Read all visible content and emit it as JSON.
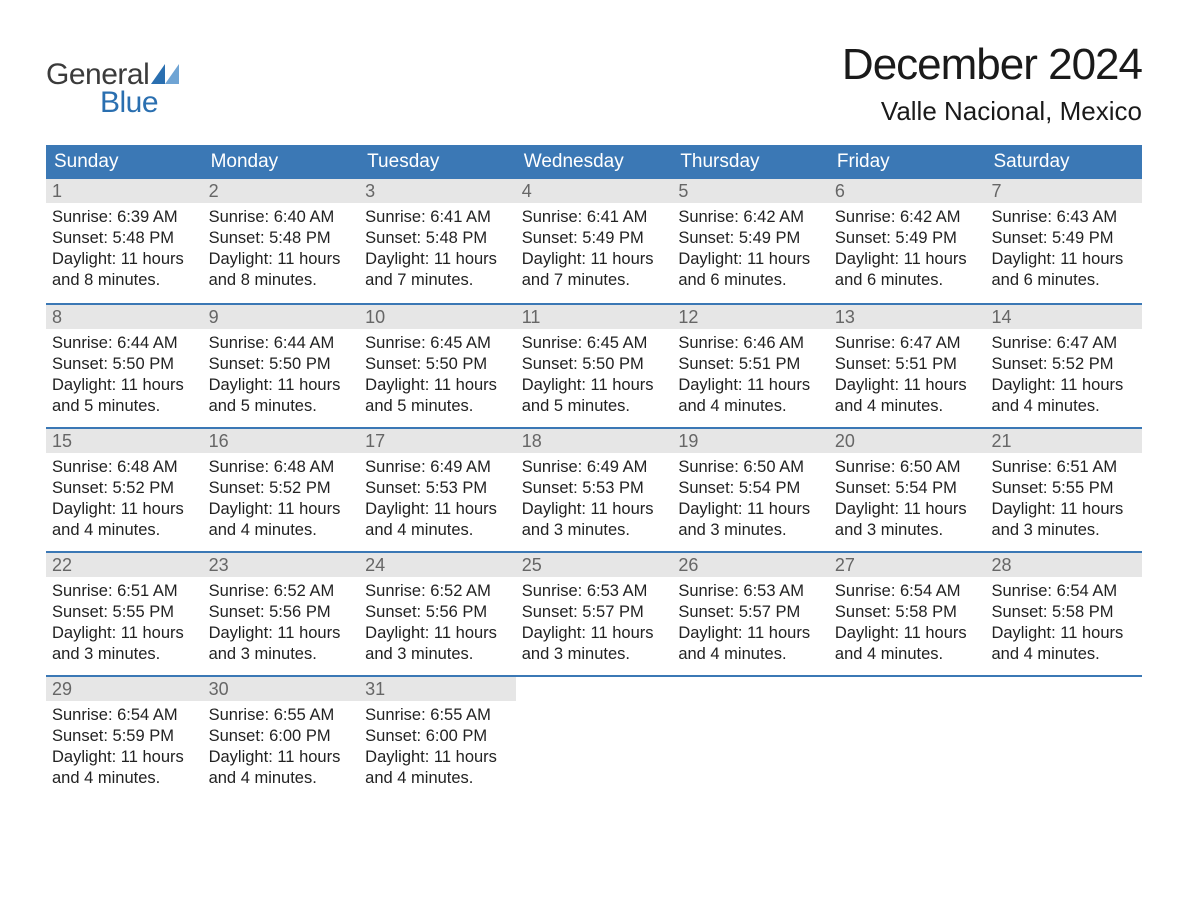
{
  "brand": {
    "general": "General",
    "blue": "Blue"
  },
  "colors": {
    "header_bg": "#3b78b5",
    "header_text": "#ffffff",
    "daynum_bg": "#e6e6e6",
    "daynum_text": "#666666",
    "body_text": "#222222",
    "week_border": "#3b78b5",
    "logo_accent": "#2a6fb0",
    "page_bg": "#ffffff"
  },
  "title": "December 2024",
  "location": "Valle Nacional, Mexico",
  "day_headers": [
    "Sunday",
    "Monday",
    "Tuesday",
    "Wednesday",
    "Thursday",
    "Friday",
    "Saturday"
  ],
  "weeks": [
    [
      {
        "day": "1",
        "sunrise": "Sunrise: 6:39 AM",
        "sunset": "Sunset: 5:48 PM",
        "dl1": "Daylight: 11 hours",
        "dl2": "and 8 minutes."
      },
      {
        "day": "2",
        "sunrise": "Sunrise: 6:40 AM",
        "sunset": "Sunset: 5:48 PM",
        "dl1": "Daylight: 11 hours",
        "dl2": "and 8 minutes."
      },
      {
        "day": "3",
        "sunrise": "Sunrise: 6:41 AM",
        "sunset": "Sunset: 5:48 PM",
        "dl1": "Daylight: 11 hours",
        "dl2": "and 7 minutes."
      },
      {
        "day": "4",
        "sunrise": "Sunrise: 6:41 AM",
        "sunset": "Sunset: 5:49 PM",
        "dl1": "Daylight: 11 hours",
        "dl2": "and 7 minutes."
      },
      {
        "day": "5",
        "sunrise": "Sunrise: 6:42 AM",
        "sunset": "Sunset: 5:49 PM",
        "dl1": "Daylight: 11 hours",
        "dl2": "and 6 minutes."
      },
      {
        "day": "6",
        "sunrise": "Sunrise: 6:42 AM",
        "sunset": "Sunset: 5:49 PM",
        "dl1": "Daylight: 11 hours",
        "dl2": "and 6 minutes."
      },
      {
        "day": "7",
        "sunrise": "Sunrise: 6:43 AM",
        "sunset": "Sunset: 5:49 PM",
        "dl1": "Daylight: 11 hours",
        "dl2": "and 6 minutes."
      }
    ],
    [
      {
        "day": "8",
        "sunrise": "Sunrise: 6:44 AM",
        "sunset": "Sunset: 5:50 PM",
        "dl1": "Daylight: 11 hours",
        "dl2": "and 5 minutes."
      },
      {
        "day": "9",
        "sunrise": "Sunrise: 6:44 AM",
        "sunset": "Sunset: 5:50 PM",
        "dl1": "Daylight: 11 hours",
        "dl2": "and 5 minutes."
      },
      {
        "day": "10",
        "sunrise": "Sunrise: 6:45 AM",
        "sunset": "Sunset: 5:50 PM",
        "dl1": "Daylight: 11 hours",
        "dl2": "and 5 minutes."
      },
      {
        "day": "11",
        "sunrise": "Sunrise: 6:45 AM",
        "sunset": "Sunset: 5:50 PM",
        "dl1": "Daylight: 11 hours",
        "dl2": "and 5 minutes."
      },
      {
        "day": "12",
        "sunrise": "Sunrise: 6:46 AM",
        "sunset": "Sunset: 5:51 PM",
        "dl1": "Daylight: 11 hours",
        "dl2": "and 4 minutes."
      },
      {
        "day": "13",
        "sunrise": "Sunrise: 6:47 AM",
        "sunset": "Sunset: 5:51 PM",
        "dl1": "Daylight: 11 hours",
        "dl2": "and 4 minutes."
      },
      {
        "day": "14",
        "sunrise": "Sunrise: 6:47 AM",
        "sunset": "Sunset: 5:52 PM",
        "dl1": "Daylight: 11 hours",
        "dl2": "and 4 minutes."
      }
    ],
    [
      {
        "day": "15",
        "sunrise": "Sunrise: 6:48 AM",
        "sunset": "Sunset: 5:52 PM",
        "dl1": "Daylight: 11 hours",
        "dl2": "and 4 minutes."
      },
      {
        "day": "16",
        "sunrise": "Sunrise: 6:48 AM",
        "sunset": "Sunset: 5:52 PM",
        "dl1": "Daylight: 11 hours",
        "dl2": "and 4 minutes."
      },
      {
        "day": "17",
        "sunrise": "Sunrise: 6:49 AM",
        "sunset": "Sunset: 5:53 PM",
        "dl1": "Daylight: 11 hours",
        "dl2": "and 4 minutes."
      },
      {
        "day": "18",
        "sunrise": "Sunrise: 6:49 AM",
        "sunset": "Sunset: 5:53 PM",
        "dl1": "Daylight: 11 hours",
        "dl2": "and 3 minutes."
      },
      {
        "day": "19",
        "sunrise": "Sunrise: 6:50 AM",
        "sunset": "Sunset: 5:54 PM",
        "dl1": "Daylight: 11 hours",
        "dl2": "and 3 minutes."
      },
      {
        "day": "20",
        "sunrise": "Sunrise: 6:50 AM",
        "sunset": "Sunset: 5:54 PM",
        "dl1": "Daylight: 11 hours",
        "dl2": "and 3 minutes."
      },
      {
        "day": "21",
        "sunrise": "Sunrise: 6:51 AM",
        "sunset": "Sunset: 5:55 PM",
        "dl1": "Daylight: 11 hours",
        "dl2": "and 3 minutes."
      }
    ],
    [
      {
        "day": "22",
        "sunrise": "Sunrise: 6:51 AM",
        "sunset": "Sunset: 5:55 PM",
        "dl1": "Daylight: 11 hours",
        "dl2": "and 3 minutes."
      },
      {
        "day": "23",
        "sunrise": "Sunrise: 6:52 AM",
        "sunset": "Sunset: 5:56 PM",
        "dl1": "Daylight: 11 hours",
        "dl2": "and 3 minutes."
      },
      {
        "day": "24",
        "sunrise": "Sunrise: 6:52 AM",
        "sunset": "Sunset: 5:56 PM",
        "dl1": "Daylight: 11 hours",
        "dl2": "and 3 minutes."
      },
      {
        "day": "25",
        "sunrise": "Sunrise: 6:53 AM",
        "sunset": "Sunset: 5:57 PM",
        "dl1": "Daylight: 11 hours",
        "dl2": "and 3 minutes."
      },
      {
        "day": "26",
        "sunrise": "Sunrise: 6:53 AM",
        "sunset": "Sunset: 5:57 PM",
        "dl1": "Daylight: 11 hours",
        "dl2": "and 4 minutes."
      },
      {
        "day": "27",
        "sunrise": "Sunrise: 6:54 AM",
        "sunset": "Sunset: 5:58 PM",
        "dl1": "Daylight: 11 hours",
        "dl2": "and 4 minutes."
      },
      {
        "day": "28",
        "sunrise": "Sunrise: 6:54 AM",
        "sunset": "Sunset: 5:58 PM",
        "dl1": "Daylight: 11 hours",
        "dl2": "and 4 minutes."
      }
    ],
    [
      {
        "day": "29",
        "sunrise": "Sunrise: 6:54 AM",
        "sunset": "Sunset: 5:59 PM",
        "dl1": "Daylight: 11 hours",
        "dl2": "and 4 minutes."
      },
      {
        "day": "30",
        "sunrise": "Sunrise: 6:55 AM",
        "sunset": "Sunset: 6:00 PM",
        "dl1": "Daylight: 11 hours",
        "dl2": "and 4 minutes."
      },
      {
        "day": "31",
        "sunrise": "Sunrise: 6:55 AM",
        "sunset": "Sunset: 6:00 PM",
        "dl1": "Daylight: 11 hours",
        "dl2": "and 4 minutes."
      },
      {
        "empty": true
      },
      {
        "empty": true
      },
      {
        "empty": true
      },
      {
        "empty": true
      }
    ]
  ]
}
